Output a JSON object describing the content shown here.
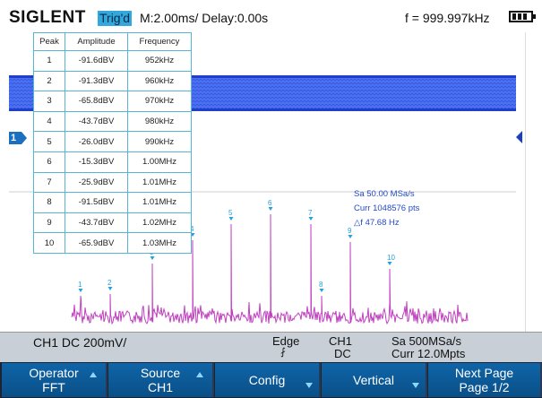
{
  "header": {
    "brand": "SIGLENT",
    "trigger_status": "Trig'd",
    "timebase": "M:2.00ms/ Delay:0.00s",
    "frequency": "f = 999.997kHz",
    "battery_icon": "battery-full-icon"
  },
  "channel_marker": {
    "label": "1"
  },
  "peak_table": {
    "columns": [
      "Peak",
      "Amplitude",
      "Frequency"
    ],
    "rows": [
      {
        "peak": "1",
        "amplitude": "-91.6dBV",
        "frequency": "952kHz"
      },
      {
        "peak": "2",
        "amplitude": "-91.3dBV",
        "frequency": "960kHz"
      },
      {
        "peak": "3",
        "amplitude": "-65.8dBV",
        "frequency": "970kHz"
      },
      {
        "peak": "4",
        "amplitude": "-43.7dBV",
        "frequency": "980kHz"
      },
      {
        "peak": "5",
        "amplitude": "-26.0dBV",
        "frequency": "990kHz"
      },
      {
        "peak": "6",
        "amplitude": "-15.3dBV",
        "frequency": "1.00MHz"
      },
      {
        "peak": "7",
        "amplitude": "-25.9dBV",
        "frequency": "1.01MHz"
      },
      {
        "peak": "8",
        "amplitude": "-91.5dBV",
        "frequency": "1.01MHz"
      },
      {
        "peak": "9",
        "amplitude": "-43.7dBV",
        "frequency": "1.02MHz"
      },
      {
        "peak": "10",
        "amplitude": "-65.9dBV",
        "frequency": "1.03MHz"
      }
    ]
  },
  "fft_info": {
    "sample_rate": "Sa 50.00 MSa/s",
    "points": "Curr 1048576 pts",
    "resolution": "△f 47.68 Hz"
  },
  "status": {
    "channel": "CH1 DC 200mV/",
    "trigger_type": "Edge",
    "trigger_source": "CH1",
    "coupling": "DC",
    "sample_rate": "Sa 500MSa/s",
    "memory_depth": "Curr 12.0Mpts"
  },
  "softkeys": [
    {
      "line1": "Operator",
      "line2": "FFT",
      "arrow": "up"
    },
    {
      "line1": "Source",
      "line2": "CH1",
      "arrow": "up"
    },
    {
      "line1": "Config",
      "line2": "",
      "arrow": "down"
    },
    {
      "line1": "Vertical",
      "line2": "",
      "arrow": "down"
    },
    {
      "line1": "Next Page",
      "line2": "Page 1/2",
      "arrow": ""
    }
  ],
  "colors": {
    "accent": "#33a8dc",
    "waveform": "#3b63e6",
    "fft_trace": "#c040c0",
    "peak_marker": "#22a0d8",
    "softkey_bg": "#0a5a99"
  }
}
